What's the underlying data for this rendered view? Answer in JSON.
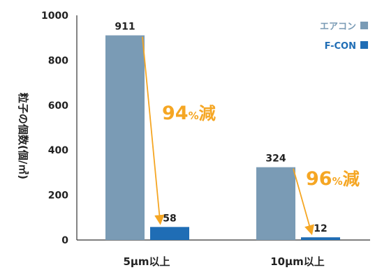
{
  "chart_data": {
    "type": "bar",
    "categories": [
      "5μm以上",
      "10μm以上"
    ],
    "series": [
      {
        "name": "エアコン",
        "values": [
          911,
          324
        ],
        "color": "#7a9bb5"
      },
      {
        "name": "F-CON",
        "values": [
          58,
          12
        ],
        "color": "#1f6db5"
      }
    ],
    "ylabel": "粒子の個数(個/㎥)",
    "ylim": [
      0,
      1000
    ],
    "yticks": [
      "0",
      "200",
      "400",
      "600",
      "800",
      "1000"
    ],
    "grid": false,
    "legend_position": "top-right",
    "annotations": [
      {
        "category": "5μm以上",
        "number": "94",
        "unit": "%",
        "word": "減",
        "color": "#f5a623"
      },
      {
        "category": "10μm以上",
        "number": "96",
        "unit": "%",
        "word": "減",
        "color": "#f5a623"
      }
    ]
  }
}
